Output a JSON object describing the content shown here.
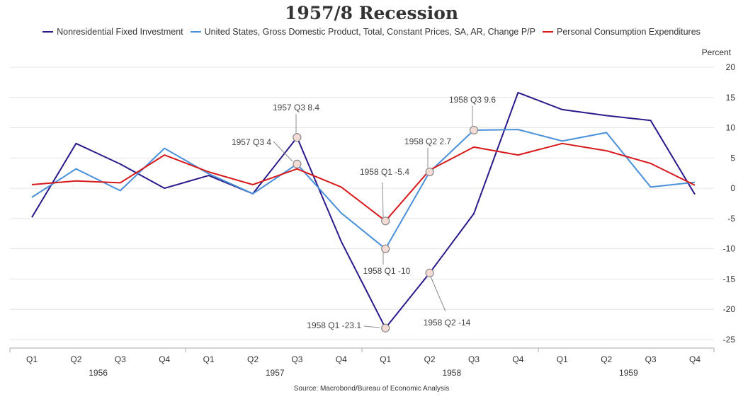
{
  "chart_data": {
    "type": "line",
    "title": "1957/8 Recession",
    "ylabel": "Percent",
    "ylim": [
      -25,
      20
    ],
    "yticks": [
      20,
      15,
      10,
      5,
      0,
      -5,
      -10,
      -15,
      -20,
      -25
    ],
    "grid": true,
    "legend_position": "top",
    "source": "Source: Macrobond/Bureau of Economic Analysis",
    "categories": [
      "Q1",
      "Q2",
      "Q3",
      "Q4",
      "Q1",
      "Q2",
      "Q3",
      "Q4",
      "Q1",
      "Q2",
      "Q3",
      "Q4",
      "Q1",
      "Q2",
      "Q3",
      "Q4"
    ],
    "years": [
      "1956",
      "1957",
      "1958",
      "1959"
    ],
    "series": [
      {
        "name": "Nonresidential Fixed Investment",
        "color": "#2b1a8a",
        "values": [
          -4.8,
          7.4,
          4.0,
          0.0,
          2.1,
          -0.9,
          8.4,
          -8.8,
          -23.1,
          -14.0,
          -4.2,
          15.8,
          13.0,
          12.0,
          11.2,
          -1.0
        ]
      },
      {
        "name": "United States, Gross Domestic Product, Total, Constant Prices, SA, AR, Change P/P",
        "color": "#4a90d9",
        "values": [
          -1.5,
          3.2,
          -0.4,
          6.6,
          2.4,
          -0.9,
          4.0,
          -4.1,
          -10.0,
          2.7,
          9.6,
          9.7,
          7.8,
          9.2,
          0.2,
          1.0
        ]
      },
      {
        "name": "Personal Consumption Expenditures",
        "color": "#d7191c",
        "values": [
          0.6,
          1.2,
          0.9,
          5.5,
          2.7,
          0.6,
          3.2,
          0.2,
          -5.4,
          3.0,
          6.8,
          5.5,
          7.4,
          6.2,
          4.1,
          0.5
        ]
      }
    ],
    "annotations": [
      {
        "label": "1957 Q3 8.4",
        "x": 6,
        "y": 8.4
      },
      {
        "label": "1957 Q3 4",
        "x": 6,
        "y": 4.0
      },
      {
        "label": "1958 Q1 -5.4",
        "x": 8,
        "y": -5.4
      },
      {
        "label": "1958 Q1 -10",
        "x": 8,
        "y": -10.0
      },
      {
        "label": "1958 Q1 -23.1",
        "x": 8,
        "y": -23.1
      },
      {
        "label": "1958 Q2 2.7",
        "x": 9,
        "y": 2.7
      },
      {
        "label": "1958 Q2 -14",
        "x": 9,
        "y": -14.0
      },
      {
        "label": "1958 Q3 9.6",
        "x": 10,
        "y": 9.6
      }
    ]
  }
}
